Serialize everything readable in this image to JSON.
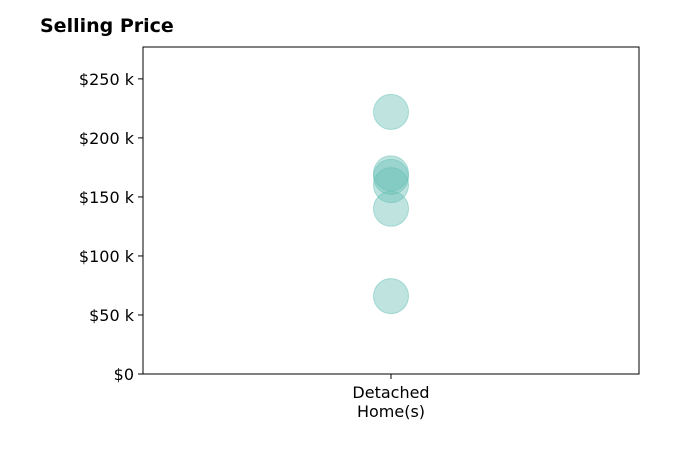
{
  "chart_data": {
    "type": "scatter",
    "title": "Selling Price",
    "xlabel": "",
    "ylabel": "",
    "categories": [
      [
        "Detached",
        "Home(s)"
      ]
    ],
    "ylim": [
      0,
      277000
    ],
    "yticks": [
      0,
      50000,
      100000,
      150000,
      200000,
      250000
    ],
    "ytick_labels": [
      "$0",
      "$50 k",
      "$100 k",
      "$150 k",
      "$200 k",
      "$250 k"
    ],
    "series": [
      {
        "category_index": 0,
        "values": [
          222000,
          170000,
          167000,
          160000,
          140000,
          66000
        ]
      }
    ],
    "colors": {
      "marker": "#66bfb5",
      "axis": "#000000"
    },
    "grid": false,
    "legend": "none"
  }
}
